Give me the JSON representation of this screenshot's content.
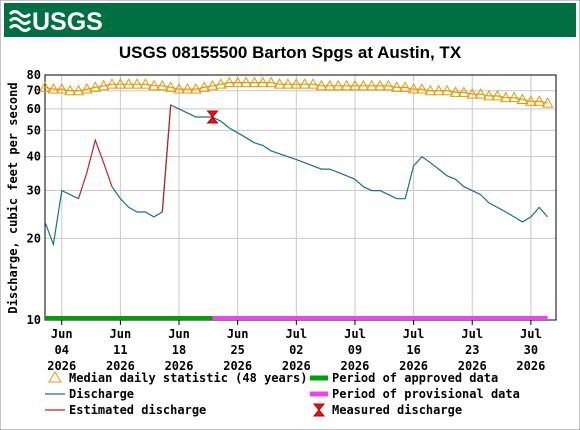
{
  "header": {
    "logo": "USGS"
  },
  "chart_data": {
    "type": "line",
    "title": "USGS 08155500 Barton Spgs at Austin, TX",
    "y_label": "Discharge, cubic feet per second",
    "log_scale": true,
    "grid": true,
    "ylim": [
      10,
      80
    ],
    "yticks": [
      10,
      20,
      30,
      40,
      50,
      60,
      70,
      80
    ],
    "xlim": [
      "2026-06-02",
      "2026-08-02"
    ],
    "xticks": [
      {
        "value": "2026-06-04",
        "label": "Jun 04 2026"
      },
      {
        "value": "2026-06-11",
        "label": "Jun 11 2026"
      },
      {
        "value": "2026-06-18",
        "label": "Jun 18 2026"
      },
      {
        "value": "2026-06-25",
        "label": "Jun 25 2026"
      },
      {
        "value": "2026-07-02",
        "label": "Jul 02 2026"
      },
      {
        "value": "2026-07-09",
        "label": "Jul 09 2026"
      },
      {
        "value": "2026-07-16",
        "label": "Jul 16 2026"
      },
      {
        "value": "2026-07-23",
        "label": "Jul 23 2026"
      },
      {
        "value": "2026-07-30",
        "label": "Jul 30 2026"
      }
    ],
    "x": [
      "2026-06-02",
      "2026-06-03",
      "2026-06-04",
      "2026-06-05",
      "2026-06-06",
      "2026-06-07",
      "2026-06-08",
      "2026-06-09",
      "2026-06-10",
      "2026-06-11",
      "2026-06-12",
      "2026-06-13",
      "2026-06-14",
      "2026-06-15",
      "2026-06-16",
      "2026-06-17",
      "2026-06-18",
      "2026-06-19",
      "2026-06-20",
      "2026-06-21",
      "2026-06-22",
      "2026-06-23",
      "2026-06-24",
      "2026-06-25",
      "2026-06-26",
      "2026-06-27",
      "2026-06-28",
      "2026-06-29",
      "2026-06-30",
      "2026-07-01",
      "2026-07-02",
      "2026-07-03",
      "2026-07-04",
      "2026-07-05",
      "2026-07-06",
      "2026-07-07",
      "2026-07-08",
      "2026-07-09",
      "2026-07-10",
      "2026-07-11",
      "2026-07-12",
      "2026-07-13",
      "2026-07-14",
      "2026-07-15",
      "2026-07-16",
      "2026-07-17",
      "2026-07-18",
      "2026-07-19",
      "2026-07-20",
      "2026-07-21",
      "2026-07-22",
      "2026-07-23",
      "2026-07-24",
      "2026-07-25",
      "2026-07-26",
      "2026-07-27",
      "2026-07-28",
      "2026-07-29",
      "2026-07-30",
      "2026-07-31",
      "2026-08-01"
    ],
    "series": [
      {
        "name": "Median daily statistic (48 years)",
        "color": "#e69a00",
        "marker": "triangle",
        "values": [
          72,
          71,
          71,
          70,
          70,
          71,
          72,
          73,
          74,
          74,
          74,
          74,
          74,
          73,
          73,
          72,
          71,
          71,
          71,
          72,
          73,
          74,
          75,
          75,
          75,
          75,
          75,
          75,
          74,
          74,
          74,
          74,
          74,
          73,
          73,
          73,
          73,
          73,
          73,
          73,
          73,
          73,
          72,
          72,
          71,
          71,
          70,
          70,
          70,
          69,
          69,
          68,
          68,
          67,
          67,
          66,
          66,
          65,
          64,
          64,
          63
        ]
      },
      {
        "name": "Discharge",
        "color": "#1a6e96",
        "values": [
          23,
          19,
          30,
          29,
          28,
          null,
          null,
          null,
          31,
          28,
          26,
          25,
          25,
          24,
          25,
          62,
          60,
          58,
          56,
          56,
          56,
          54,
          51,
          49,
          47,
          45,
          44,
          42,
          41,
          40,
          39,
          38,
          37,
          36,
          36,
          35,
          34,
          33,
          31,
          30,
          30,
          29,
          28,
          28,
          37,
          40,
          38,
          36,
          34,
          33,
          31,
          30,
          29,
          27,
          26,
          25,
          24,
          23,
          24,
          26,
          24
        ]
      },
      {
        "name": "Estimated discharge",
        "color": "#c42020",
        "values": [
          null,
          null,
          null,
          null,
          28,
          35,
          46,
          38,
          31,
          null,
          null,
          null,
          null,
          null,
          25,
          62,
          null,
          null,
          null,
          null,
          null,
          null,
          null,
          null,
          null,
          null,
          null,
          null,
          null,
          null,
          null,
          null,
          null,
          null,
          null,
          null,
          null,
          null,
          null,
          null,
          null,
          null,
          null,
          null,
          null,
          null,
          null,
          null,
          null,
          null,
          null,
          null,
          null,
          null,
          null,
          null,
          null,
          null,
          null,
          null,
          null
        ]
      }
    ],
    "measured": {
      "name": "Measured discharge",
      "color": "#ee1111",
      "x": [
        "2026-06-22"
      ],
      "values": [
        56
      ]
    },
    "periods": [
      {
        "name": "Period of approved data",
        "color": "#00a000",
        "start": "2026-06-02",
        "end": "2026-06-22"
      },
      {
        "name": "Period of provisional data",
        "color": "#ee44ee",
        "start": "2026-06-22",
        "end": "2026-08-01"
      }
    ]
  }
}
